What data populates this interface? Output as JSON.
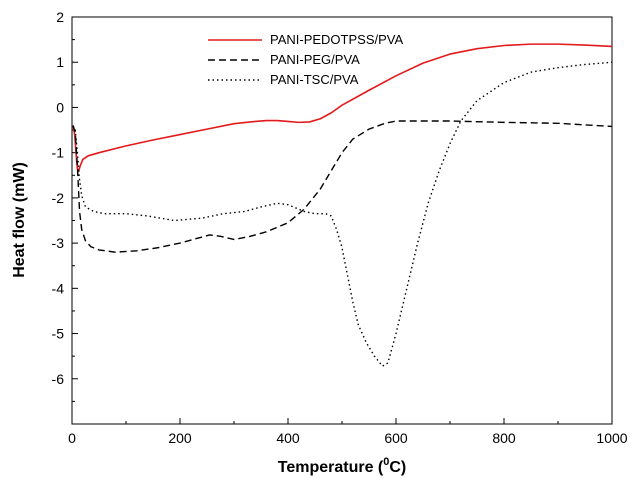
{
  "chart_data": {
    "type": "line",
    "xlabel": "Temperature (",
    "xlabel_sup": "0",
    "xlabel_unit": "C)",
    "ylabel": "Heat flow (mW)",
    "xlim": [
      0,
      1000
    ],
    "ylim": [
      -7,
      2
    ],
    "xticks": [
      0,
      200,
      400,
      600,
      800,
      1000
    ],
    "yticks": [
      -6,
      -5,
      -4,
      -3,
      -2,
      -1,
      0,
      1,
      2
    ],
    "grid": false,
    "legend_position": "top-center",
    "series": [
      {
        "name": "PANI-PEDOTPSS/PVA",
        "color": "#e31a1c",
        "style": "solid",
        "x": [
          2,
          5,
          8,
          10,
          12,
          15,
          20,
          30,
          50,
          100,
          150,
          200,
          250,
          300,
          330,
          360,
          380,
          400,
          420,
          440,
          460,
          480,
          500,
          550,
          600,
          650,
          700,
          750,
          800,
          850,
          900,
          950,
          1000
        ],
        "y": [
          -0.4,
          -0.6,
          -1.1,
          -1.35,
          -1.42,
          -1.3,
          -1.15,
          -1.07,
          -1.0,
          -0.85,
          -0.72,
          -0.6,
          -0.48,
          -0.36,
          -0.32,
          -0.29,
          -0.29,
          -0.31,
          -0.33,
          -0.32,
          -0.25,
          -0.12,
          0.05,
          0.38,
          0.7,
          0.98,
          1.18,
          1.3,
          1.37,
          1.4,
          1.4,
          1.38,
          1.35
        ]
      },
      {
        "name": "PANI-PEG/PVA",
        "color": "#000000",
        "style": "dashed",
        "x": [
          2,
          6,
          10,
          14,
          18,
          25,
          35,
          50,
          80,
          120,
          160,
          200,
          230,
          255,
          275,
          300,
          330,
          360,
          400,
          430,
          460,
          480,
          500,
          520,
          550,
          580,
          600,
          650,
          700,
          800,
          900,
          1000
        ],
        "y": [
          -0.4,
          -0.55,
          -1.3,
          -2.3,
          -2.7,
          -2.95,
          -3.08,
          -3.15,
          -3.2,
          -3.17,
          -3.1,
          -3.0,
          -2.9,
          -2.82,
          -2.85,
          -2.92,
          -2.85,
          -2.75,
          -2.55,
          -2.25,
          -1.8,
          -1.4,
          -1.0,
          -0.7,
          -0.48,
          -0.35,
          -0.3,
          -0.3,
          -0.3,
          -0.33,
          -0.35,
          -0.42
        ]
      },
      {
        "name": "PANI-TSC/PVA",
        "color": "#000000",
        "style": "dotted",
        "x": [
          2,
          6,
          10,
          14,
          18,
          25,
          40,
          60,
          100,
          140,
          190,
          240,
          280,
          320,
          350,
          380,
          400,
          430,
          450,
          470,
          480,
          490,
          500,
          510,
          520,
          530,
          545,
          560,
          575,
          585,
          600,
          620,
          640,
          660,
          680,
          700,
          720,
          750,
          800,
          850,
          900,
          950,
          1000
        ],
        "y": [
          -0.4,
          -0.5,
          -1.0,
          -1.6,
          -1.95,
          -2.2,
          -2.3,
          -2.35,
          -2.35,
          -2.4,
          -2.5,
          -2.45,
          -2.35,
          -2.3,
          -2.2,
          -2.12,
          -2.15,
          -2.3,
          -2.35,
          -2.35,
          -2.4,
          -2.7,
          -3.1,
          -3.7,
          -4.3,
          -4.8,
          -5.2,
          -5.5,
          -5.72,
          -5.65,
          -5.0,
          -4.0,
          -3.0,
          -2.1,
          -1.4,
          -0.8,
          -0.3,
          0.15,
          0.55,
          0.78,
          0.88,
          0.95,
          1.0
        ]
      }
    ]
  }
}
